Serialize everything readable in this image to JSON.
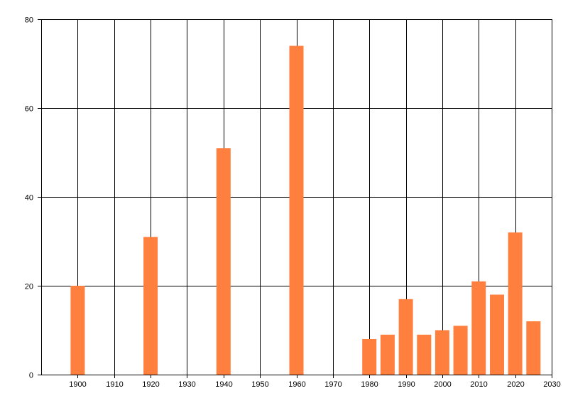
{
  "chart_data": {
    "type": "bar",
    "title": "",
    "xlabel": "",
    "ylabel": "",
    "xlim": [
      1890,
      2030
    ],
    "ylim": [
      0,
      80
    ],
    "x_ticks": [
      1900,
      1910,
      1920,
      1930,
      1940,
      1950,
      1960,
      1970,
      1980,
      1990,
      2000,
      2010,
      2020,
      2030
    ],
    "y_ticks": [
      0,
      20,
      40,
      60,
      80
    ],
    "grid": true,
    "legend": "none",
    "bar_color": "#ff7f3f",
    "x": [
      1900,
      1920,
      1940,
      1960,
      1980,
      1985,
      1990,
      1995,
      2000,
      2005,
      2010,
      2015,
      2020,
      2025
    ],
    "values": [
      20,
      31,
      51,
      74,
      8,
      9,
      17,
      9,
      10,
      11,
      21,
      18,
      32,
      12
    ]
  }
}
